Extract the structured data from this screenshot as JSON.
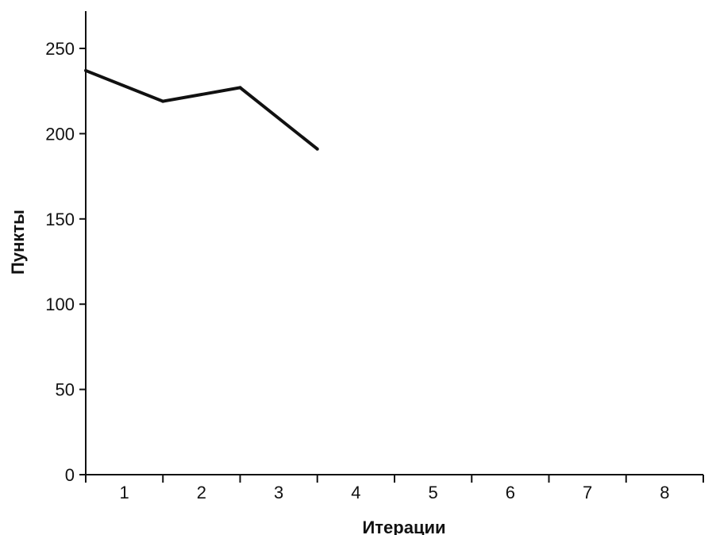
{
  "chart_data": {
    "type": "line",
    "xlabel": "Итерации",
    "ylabel": "Пункты",
    "categories": [
      "1",
      "2",
      "3",
      "4",
      "5",
      "6",
      "7",
      "8"
    ],
    "yticks": [
      0,
      50,
      100,
      150,
      200,
      250
    ],
    "ylim": [
      0,
      272
    ],
    "series": [
      {
        "x": [
          0,
          1,
          2,
          3
        ],
        "values": [
          237,
          219,
          227,
          191
        ],
        "color": "#111111"
      }
    ],
    "grid": false,
    "legend": "none"
  }
}
